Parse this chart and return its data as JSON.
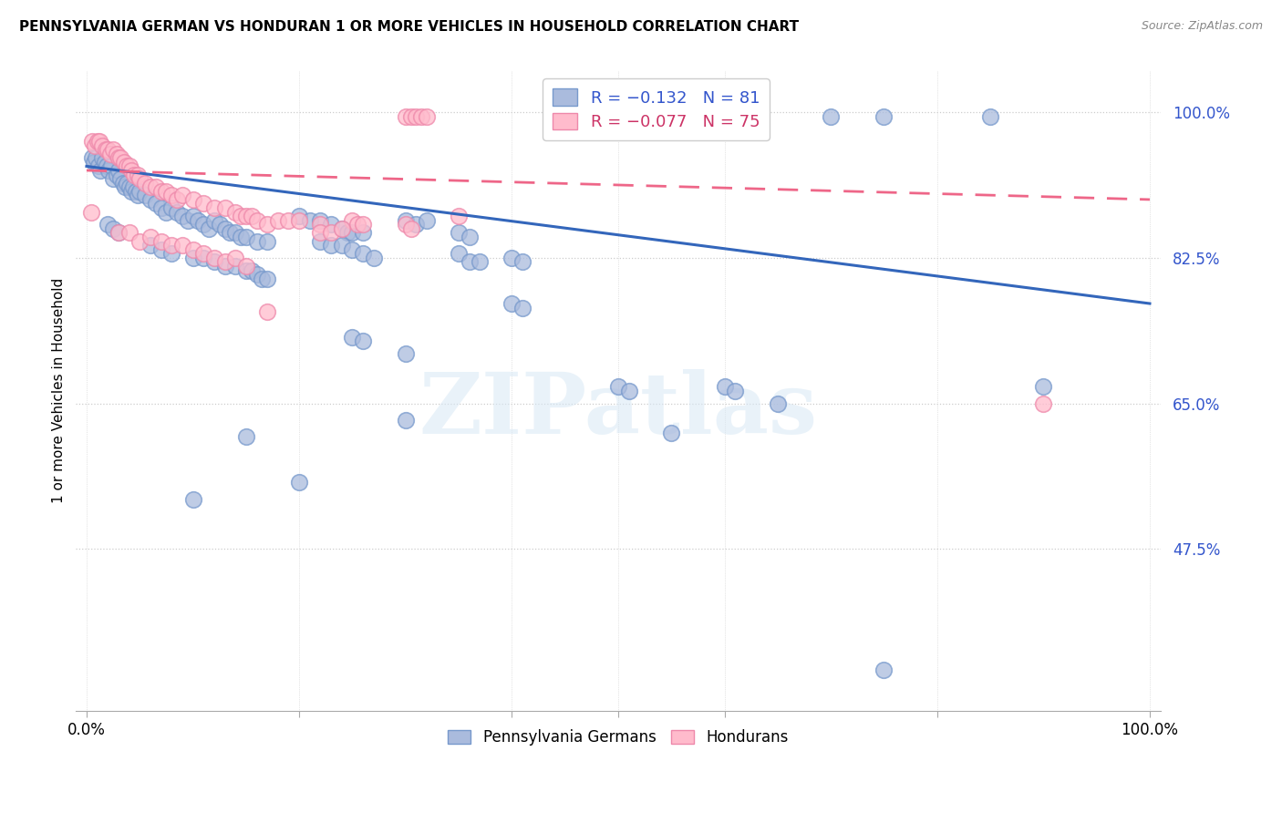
{
  "title": "PENNSYLVANIA GERMAN VS HONDURAN 1 OR MORE VEHICLES IN HOUSEHOLD CORRELATION CHART",
  "source": "Source: ZipAtlas.com",
  "ylabel": "1 or more Vehicles in Household",
  "ytick_labels": [
    "100.0%",
    "82.5%",
    "65.0%",
    "47.5%"
  ],
  "ytick_values": [
    1.0,
    0.825,
    0.65,
    0.475
  ],
  "blue_color": "#aabbdd",
  "blue_edge_color": "#7799cc",
  "pink_color": "#ffbbcc",
  "pink_edge_color": "#ee88aa",
  "blue_line_color": "#3366bb",
  "pink_line_color": "#ee6688",
  "legend_blue_text_color": "#3355cc",
  "legend_pink_text_color": "#cc3366",
  "blue_scatter": [
    [
      0.005,
      0.945
    ],
    [
      0.007,
      0.94
    ],
    [
      0.009,
      0.945
    ],
    [
      0.011,
      0.935
    ],
    [
      0.013,
      0.93
    ],
    [
      0.015,
      0.945
    ],
    [
      0.017,
      0.94
    ],
    [
      0.019,
      0.935
    ],
    [
      0.021,
      0.93
    ],
    [
      0.023,
      0.935
    ],
    [
      0.025,
      0.92
    ],
    [
      0.028,
      0.925
    ],
    [
      0.03,
      0.93
    ],
    [
      0.032,
      0.92
    ],
    [
      0.034,
      0.915
    ],
    [
      0.036,
      0.91
    ],
    [
      0.038,
      0.915
    ],
    [
      0.04,
      0.91
    ],
    [
      0.042,
      0.905
    ],
    [
      0.044,
      0.91
    ],
    [
      0.046,
      0.905
    ],
    [
      0.048,
      0.9
    ],
    [
      0.05,
      0.905
    ],
    [
      0.055,
      0.9
    ],
    [
      0.06,
      0.895
    ],
    [
      0.065,
      0.89
    ],
    [
      0.07,
      0.885
    ],
    [
      0.075,
      0.88
    ],
    [
      0.08,
      0.885
    ],
    [
      0.085,
      0.88
    ],
    [
      0.09,
      0.875
    ],
    [
      0.095,
      0.87
    ],
    [
      0.1,
      0.875
    ],
    [
      0.105,
      0.87
    ],
    [
      0.11,
      0.865
    ],
    [
      0.115,
      0.86
    ],
    [
      0.12,
      0.87
    ],
    [
      0.125,
      0.865
    ],
    [
      0.13,
      0.86
    ],
    [
      0.135,
      0.855
    ],
    [
      0.14,
      0.855
    ],
    [
      0.145,
      0.85
    ],
    [
      0.15,
      0.85
    ],
    [
      0.16,
      0.845
    ],
    [
      0.17,
      0.845
    ],
    [
      0.02,
      0.865
    ],
    [
      0.025,
      0.86
    ],
    [
      0.03,
      0.855
    ],
    [
      0.06,
      0.84
    ],
    [
      0.07,
      0.835
    ],
    [
      0.08,
      0.83
    ],
    [
      0.1,
      0.825
    ],
    [
      0.11,
      0.825
    ],
    [
      0.12,
      0.82
    ],
    [
      0.13,
      0.815
    ],
    [
      0.14,
      0.815
    ],
    [
      0.15,
      0.81
    ],
    [
      0.155,
      0.81
    ],
    [
      0.16,
      0.805
    ],
    [
      0.165,
      0.8
    ],
    [
      0.17,
      0.8
    ],
    [
      0.2,
      0.875
    ],
    [
      0.21,
      0.87
    ],
    [
      0.22,
      0.87
    ],
    [
      0.23,
      0.865
    ],
    [
      0.24,
      0.86
    ],
    [
      0.245,
      0.855
    ],
    [
      0.25,
      0.855
    ],
    [
      0.26,
      0.855
    ],
    [
      0.22,
      0.845
    ],
    [
      0.23,
      0.84
    ],
    [
      0.24,
      0.84
    ],
    [
      0.25,
      0.835
    ],
    [
      0.26,
      0.83
    ],
    [
      0.27,
      0.825
    ],
    [
      0.3,
      0.87
    ],
    [
      0.31,
      0.865
    ],
    [
      0.32,
      0.87
    ],
    [
      0.35,
      0.855
    ],
    [
      0.36,
      0.85
    ],
    [
      0.35,
      0.83
    ],
    [
      0.36,
      0.82
    ],
    [
      0.37,
      0.82
    ],
    [
      0.4,
      0.825
    ],
    [
      0.41,
      0.82
    ],
    [
      0.4,
      0.77
    ],
    [
      0.41,
      0.765
    ],
    [
      0.5,
      0.67
    ],
    [
      0.51,
      0.665
    ],
    [
      0.55,
      0.615
    ],
    [
      0.6,
      0.67
    ],
    [
      0.61,
      0.665
    ],
    [
      0.65,
      0.65
    ],
    [
      0.25,
      0.73
    ],
    [
      0.26,
      0.725
    ],
    [
      0.3,
      0.71
    ],
    [
      0.3,
      0.63
    ],
    [
      0.2,
      0.555
    ],
    [
      0.15,
      0.61
    ],
    [
      0.1,
      0.535
    ],
    [
      0.7,
      0.995
    ],
    [
      0.75,
      0.995
    ],
    [
      0.85,
      0.995
    ],
    [
      0.9,
      0.67
    ],
    [
      0.75,
      0.33
    ]
  ],
  "pink_scatter": [
    [
      0.005,
      0.965
    ],
    [
      0.008,
      0.96
    ],
    [
      0.01,
      0.965
    ],
    [
      0.012,
      0.965
    ],
    [
      0.015,
      0.96
    ],
    [
      0.018,
      0.955
    ],
    [
      0.02,
      0.955
    ],
    [
      0.022,
      0.95
    ],
    [
      0.025,
      0.955
    ],
    [
      0.028,
      0.95
    ],
    [
      0.03,
      0.945
    ],
    [
      0.032,
      0.945
    ],
    [
      0.035,
      0.94
    ],
    [
      0.038,
      0.935
    ],
    [
      0.04,
      0.935
    ],
    [
      0.042,
      0.93
    ],
    [
      0.045,
      0.925
    ],
    [
      0.048,
      0.925
    ],
    [
      0.05,
      0.92
    ],
    [
      0.055,
      0.915
    ],
    [
      0.06,
      0.91
    ],
    [
      0.065,
      0.91
    ],
    [
      0.07,
      0.905
    ],
    [
      0.075,
      0.905
    ],
    [
      0.08,
      0.9
    ],
    [
      0.085,
      0.895
    ],
    [
      0.09,
      0.9
    ],
    [
      0.1,
      0.895
    ],
    [
      0.11,
      0.89
    ],
    [
      0.12,
      0.885
    ],
    [
      0.13,
      0.885
    ],
    [
      0.14,
      0.88
    ],
    [
      0.145,
      0.875
    ],
    [
      0.15,
      0.875
    ],
    [
      0.155,
      0.875
    ],
    [
      0.16,
      0.87
    ],
    [
      0.17,
      0.865
    ],
    [
      0.18,
      0.87
    ],
    [
      0.19,
      0.87
    ],
    [
      0.2,
      0.87
    ],
    [
      0.22,
      0.865
    ],
    [
      0.004,
      0.88
    ],
    [
      0.03,
      0.855
    ],
    [
      0.04,
      0.855
    ],
    [
      0.05,
      0.845
    ],
    [
      0.06,
      0.85
    ],
    [
      0.07,
      0.845
    ],
    [
      0.08,
      0.84
    ],
    [
      0.09,
      0.84
    ],
    [
      0.1,
      0.835
    ],
    [
      0.11,
      0.83
    ],
    [
      0.12,
      0.825
    ],
    [
      0.13,
      0.82
    ],
    [
      0.14,
      0.825
    ],
    [
      0.15,
      0.815
    ],
    [
      0.25,
      0.87
    ],
    [
      0.255,
      0.865
    ],
    [
      0.26,
      0.865
    ],
    [
      0.22,
      0.855
    ],
    [
      0.23,
      0.855
    ],
    [
      0.24,
      0.86
    ],
    [
      0.17,
      0.76
    ],
    [
      0.3,
      0.865
    ],
    [
      0.305,
      0.86
    ],
    [
      0.35,
      0.875
    ],
    [
      0.3,
      0.995
    ],
    [
      0.305,
      0.995
    ],
    [
      0.31,
      0.995
    ],
    [
      0.315,
      0.995
    ],
    [
      0.32,
      0.995
    ],
    [
      0.9,
      0.65
    ]
  ],
  "blue_line": {
    "x0": 0.0,
    "y0": 0.935,
    "x1": 1.0,
    "y1": 0.77
  },
  "pink_line": {
    "x0": 0.0,
    "y0": 0.93,
    "x1": 1.0,
    "y1": 0.895
  },
  "watermark": "ZIPatlas",
  "xlim": [
    -0.01,
    1.01
  ],
  "ylim": [
    0.28,
    1.05
  ]
}
